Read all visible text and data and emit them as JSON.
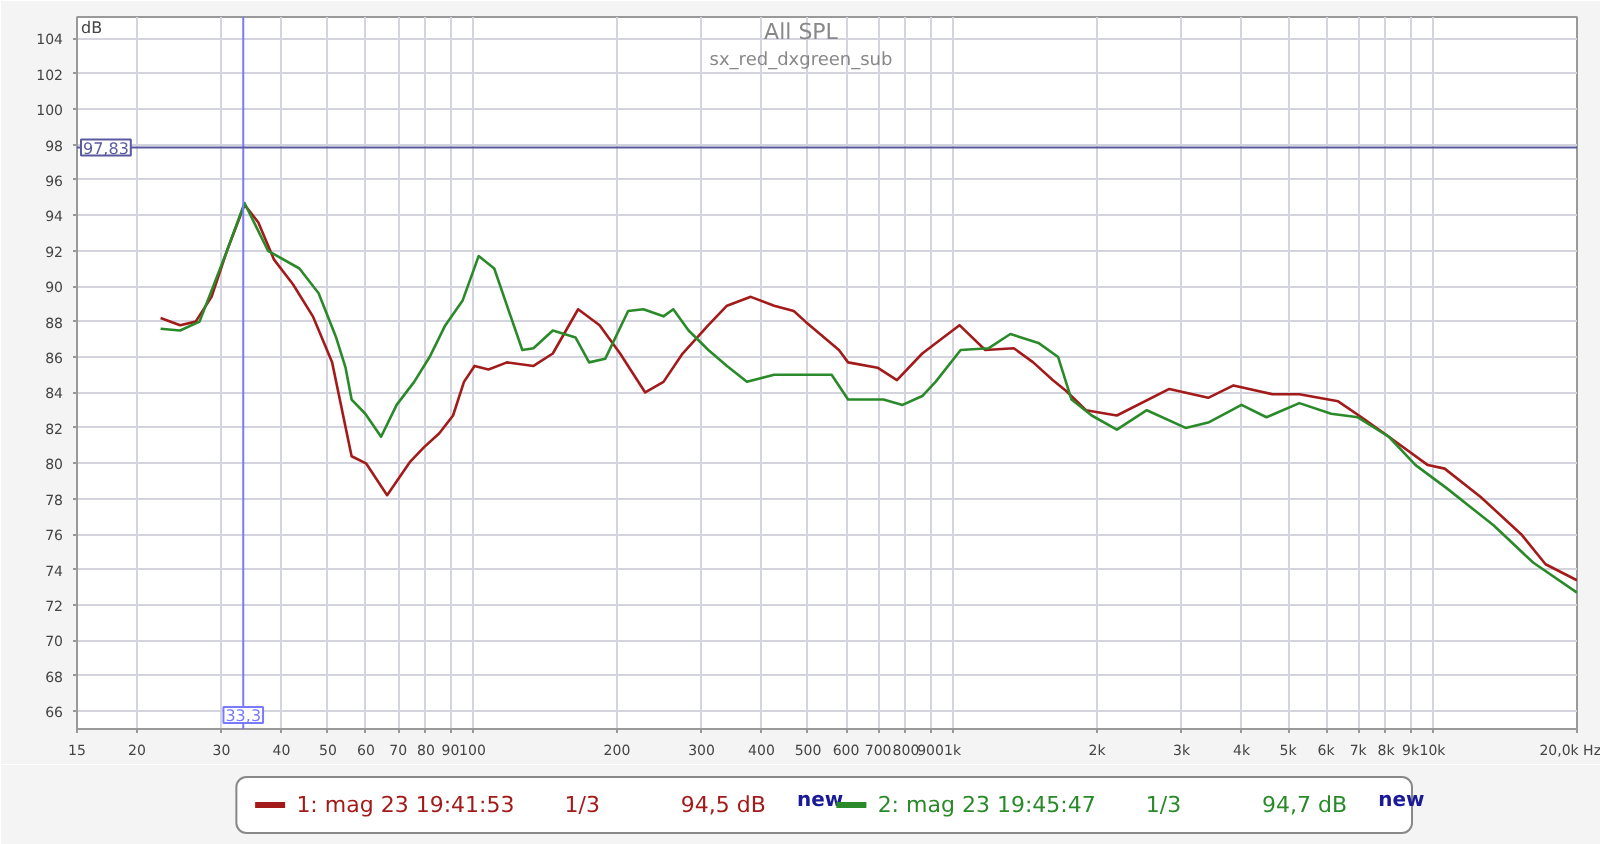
{
  "chart_data": {
    "type": "line",
    "title": "All SPL",
    "subtitle": "sx_red_dxgreen_sub",
    "ylabel": "dB",
    "log": "x",
    "xlim": [
      15,
      20000
    ],
    "ylim": [
      65,
      105.2
    ],
    "xticks": [
      15,
      20,
      30,
      40,
      50,
      60,
      70,
      80,
      90,
      100,
      {
        "value": 200,
        "label": "200"
      },
      300,
      400,
      500,
      600,
      700,
      800,
      900,
      {
        "value": 1000,
        "label": "1k"
      },
      {
        "value": 2000,
        "label": "2k"
      },
      {
        "value": 3000,
        "label": "3k"
      },
      {
        "value": 4000,
        "label": "4k"
      },
      {
        "value": 5000,
        "label": "5k"
      },
      {
        "value": 6000,
        "label": "6k"
      },
      {
        "value": 7000,
        "label": "7k"
      },
      {
        "value": 8000,
        "label": "8k"
      },
      {
        "value": 9000,
        "label": "9k"
      },
      {
        "value": 10000,
        "label": "10k"
      },
      {
        "value": 20000,
        "label": "20,0k Hz"
      }
    ],
    "yticks": [
      66,
      68,
      70,
      72,
      74,
      76,
      78,
      80,
      82,
      84,
      86,
      88,
      90,
      92,
      94,
      96,
      98,
      100,
      102,
      104
    ],
    "grid": true,
    "legend": "bottom",
    "line_style": "solid",
    "series": [
      {
        "name": "1: mag 23 19:41:53",
        "color": "#a31a1a",
        "x": [
          22.4,
          24.6,
          26.5,
          28.6,
          30.8,
          33.5,
          35.8,
          38.6,
          42.3,
          46.5,
          51.0,
          56.0,
          60.0,
          66.4,
          74.2,
          79.2,
          85.3,
          91.1,
          96,
          101,
          108,
          118,
          134,
          147,
          166,
          184,
          203,
          229,
          250,
          274,
          310,
          339,
          380,
          425,
          467,
          494,
          580,
          606,
          698,
          766,
          865,
          1034,
          1170,
          1342,
          1473,
          1617,
          1723,
          1897,
          2200,
          2830,
          3410,
          3850,
          4640,
          5280,
          6360,
          7200,
          8110,
          9780,
          10600,
          12600,
          15300,
          17200,
          20000
        ],
        "values": [
          88.2,
          87.8,
          88.0,
          89.4,
          92.0,
          94.6,
          93.6,
          91.5,
          90.1,
          88.3,
          85.7,
          80.4,
          80.0,
          78.2,
          80.1,
          80.9,
          81.7,
          82.7,
          84.6,
          85.5,
          85.3,
          85.7,
          85.5,
          86.2,
          88.7,
          87.8,
          86.2,
          84.0,
          84.6,
          86.2,
          87.8,
          88.9,
          89.4,
          88.9,
          88.6,
          88.0,
          86.4,
          85.7,
          85.4,
          84.7,
          86.2,
          87.8,
          86.4,
          86.5,
          85.7,
          84.7,
          84.1,
          83.0,
          82.7,
          84.2,
          83.7,
          84.4,
          83.9,
          83.9,
          83.5,
          82.5,
          81.5,
          79.9,
          79.7,
          78.1,
          76.0,
          74.3,
          73.4
        ]
      },
      {
        "name": "2: mag 23 19:45:47",
        "color": "#2a8a2a",
        "x": [
          22.4,
          24.6,
          27,
          30.8,
          33.5,
          37.5,
          43.6,
          47.8,
          52,
          54.4,
          56,
          59.8,
          64.5,
          69.5,
          75.6,
          81.4,
          87.8,
          95.4,
          103,
          111,
          118,
          127,
          134,
          147,
          164,
          175,
          189,
          211,
          227,
          250,
          262,
          282,
          310,
          339,
          373,
          425,
          494,
          560,
          606,
          718,
          787,
          865,
          922,
          1040,
          1190,
          1320,
          1510,
          1660,
          1770,
          1950,
          2200,
          2540,
          3060,
          3410,
          4000,
          4510,
          5280,
          6150,
          6990,
          8110,
          9220,
          10700,
          13400,
          16200,
          20000
        ],
        "values": [
          87.6,
          87.5,
          88.0,
          92.0,
          94.7,
          92.0,
          91.0,
          89.6,
          87.1,
          85.4,
          83.6,
          82.8,
          81.5,
          83.3,
          84.6,
          86.0,
          87.8,
          89.2,
          91.7,
          91.0,
          88.9,
          86.4,
          86.5,
          87.5,
          87.1,
          85.7,
          85.9,
          88.6,
          88.7,
          88.3,
          88.7,
          87.5,
          86.4,
          85.5,
          84.6,
          85.0,
          85.0,
          85.0,
          83.6,
          83.6,
          83.3,
          83.8,
          84.6,
          86.4,
          86.5,
          87.3,
          86.8,
          86.0,
          83.6,
          82.7,
          81.9,
          83.0,
          82.0,
          82.3,
          83.3,
          82.6,
          83.4,
          82.8,
          82.6,
          81.5,
          79.9,
          78.6,
          76.5,
          74.4,
          72.7
        ]
      }
    ],
    "ref_lines": [
      {
        "axis": "x",
        "value": 33.3,
        "label": "33,3",
        "color": "#7a7aff"
      },
      {
        "axis": "y",
        "value": 97.83,
        "label": "97,83",
        "color": "#5a5aa0"
      }
    ],
    "annotations": [
      "1/3",
      "94,5 dB",
      "new",
      "1/3",
      "94,7 dB",
      "new"
    ]
  }
}
